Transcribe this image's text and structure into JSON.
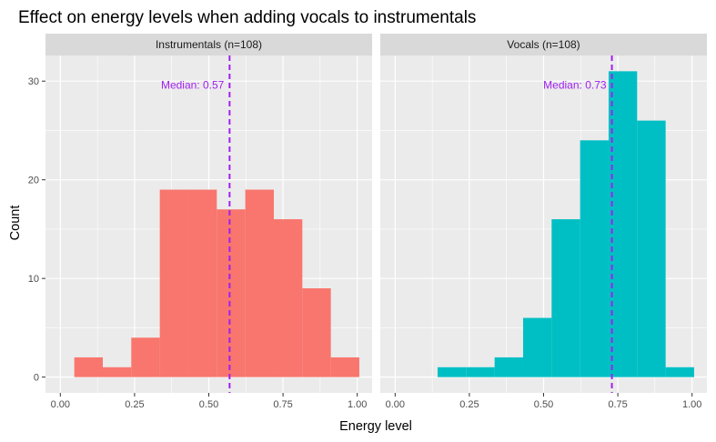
{
  "chart_data": {
    "type": "bar",
    "title": "Effect on energy levels when adding vocals to instrumentals",
    "xlabel": "Energy level",
    "ylabel": "Count",
    "xlim": [
      0,
      1
    ],
    "ylim": [
      0,
      32
    ],
    "x_ticks": [
      "0.00",
      "0.25",
      "0.50",
      "0.75",
      "1.00"
    ],
    "y_ticks": [
      "0",
      "10",
      "20",
      "30"
    ],
    "bin_width": 0.096,
    "median_color": "#A020F0",
    "grid": true,
    "panels": [
      {
        "name": "Instrumentals (n=108)",
        "color": "#F8766D",
        "median": 0.57,
        "median_label": "Median:  0.57",
        "bins": [
          {
            "x0": 0.047,
            "x1": 0.143,
            "count": 2
          },
          {
            "x0": 0.143,
            "x1": 0.239,
            "count": 1
          },
          {
            "x0": 0.239,
            "x1": 0.335,
            "count": 4
          },
          {
            "x0": 0.335,
            "x1": 0.431,
            "count": 19
          },
          {
            "x0": 0.431,
            "x1": 0.527,
            "count": 19
          },
          {
            "x0": 0.527,
            "x1": 0.623,
            "count": 17
          },
          {
            "x0": 0.623,
            "x1": 0.719,
            "count": 19
          },
          {
            "x0": 0.719,
            "x1": 0.815,
            "count": 16
          },
          {
            "x0": 0.815,
            "x1": 0.911,
            "count": 9
          },
          {
            "x0": 0.911,
            "x1": 1.007,
            "count": 2
          }
        ]
      },
      {
        "name": "Vocals (n=108)",
        "color": "#00BFC4",
        "median": 0.73,
        "median_label": "Median:  0.73",
        "bins": [
          {
            "x0": 0.143,
            "x1": 0.239,
            "count": 1
          },
          {
            "x0": 0.239,
            "x1": 0.335,
            "count": 1
          },
          {
            "x0": 0.335,
            "x1": 0.431,
            "count": 2
          },
          {
            "x0": 0.431,
            "x1": 0.527,
            "count": 6
          },
          {
            "x0": 0.527,
            "x1": 0.623,
            "count": 16
          },
          {
            "x0": 0.623,
            "x1": 0.719,
            "count": 24
          },
          {
            "x0": 0.719,
            "x1": 0.815,
            "count": 31
          },
          {
            "x0": 0.815,
            "x1": 0.911,
            "count": 26
          },
          {
            "x0": 0.911,
            "x1": 1.007,
            "count": 1
          }
        ]
      }
    ]
  }
}
